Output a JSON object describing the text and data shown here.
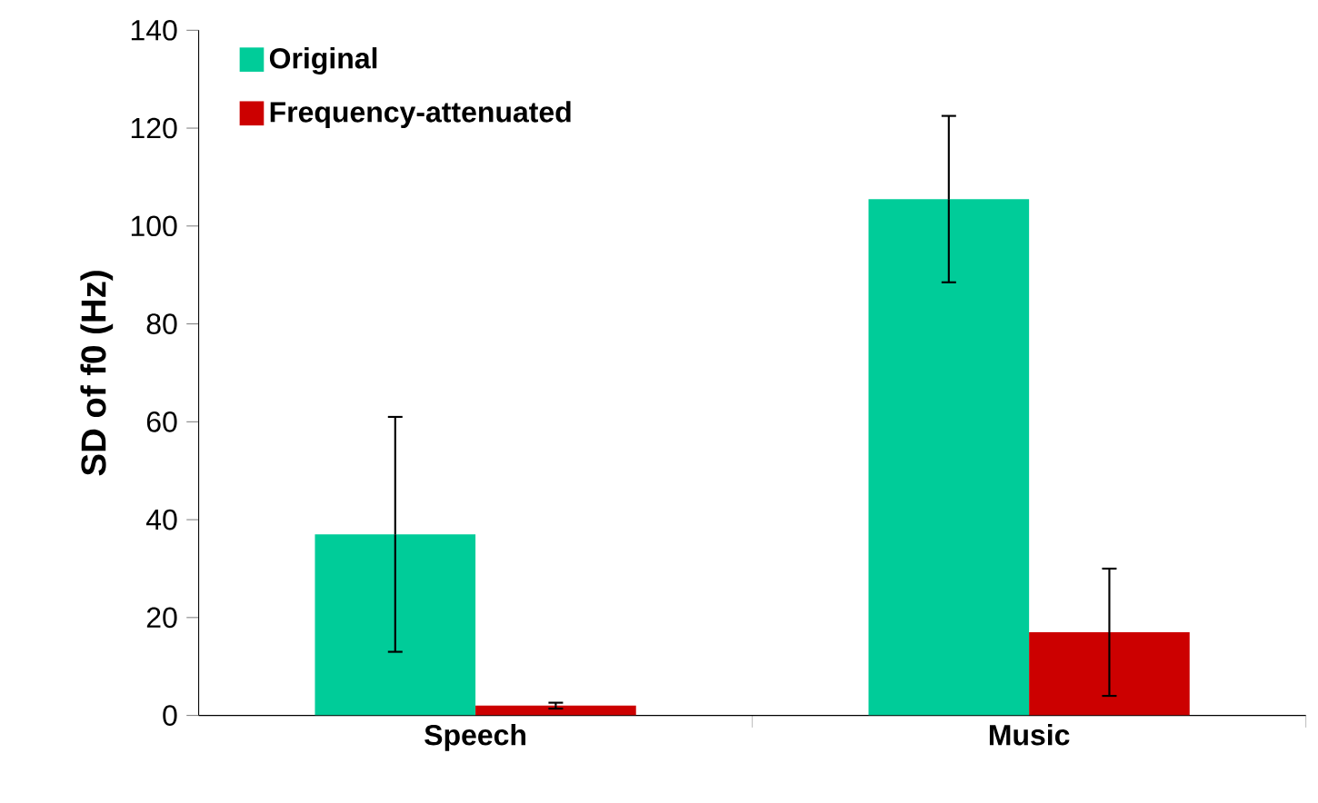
{
  "chart_data": {
    "type": "bar",
    "ylabel": "SD of f0 (Hz)",
    "categories": [
      "Speech",
      "Music"
    ],
    "series": [
      {
        "name": "Original",
        "color": "#00cc99",
        "values": [
          37,
          105.5
        ],
        "errors": [
          24,
          17
        ]
      },
      {
        "name": "Frequency-attenuated",
        "color": "#cc0000",
        "values": [
          2,
          17
        ],
        "errors": [
          0.6,
          13
        ]
      }
    ],
    "ylim": [
      0,
      140
    ],
    "yticks": [
      0,
      20,
      40,
      60,
      80,
      100,
      120,
      140
    ],
    "grid": false,
    "legend": "top left"
  }
}
